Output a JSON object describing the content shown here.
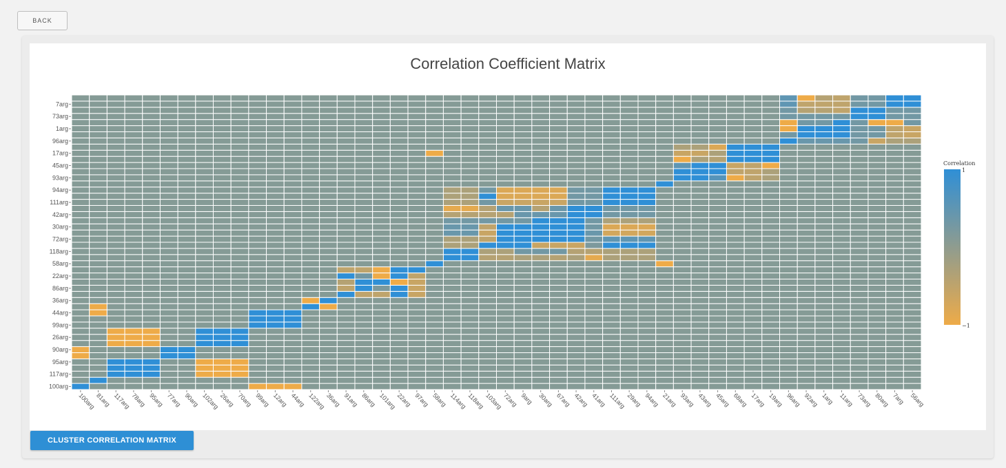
{
  "toolbar": {
    "back_label": "BACK"
  },
  "actions": {
    "cluster_label": "CLUSTER CORRELATION MATRIX"
  },
  "chart_data": {
    "type": "heatmap",
    "title": "Correlation Coefficient Matrix",
    "x_labels": [
      "100arg",
      "81arg",
      "117arg",
      "78arg",
      "95arg",
      "77arg",
      "90arg",
      "102arg",
      "26arg",
      "70arg",
      "99arg",
      "12arg",
      "44arg",
      "122arg",
      "36arg",
      "91arg",
      "86arg",
      "101arg",
      "22arg",
      "97arg",
      "58arg",
      "114arg",
      "118arg",
      "103arg",
      "72arg",
      "9arg",
      "30arg",
      "67arg",
      "42arg",
      "41arg",
      "111arg",
      "29arg",
      "94arg",
      "21arg",
      "93arg",
      "43arg",
      "45arg",
      "68arg",
      "17arg",
      "19arg",
      "96arg",
      "92arg",
      "1arg",
      "11arg",
      "73arg",
      "80arg",
      "7arg",
      "56arg"
    ],
    "y_tick_labels": [
      "7arg",
      "73arg",
      "1arg",
      "96arg",
      "17arg",
      "45arg",
      "93arg",
      "94arg",
      "111arg",
      "42arg",
      "30arg",
      "72arg",
      "118arg",
      "58arg",
      "22arg",
      "86arg",
      "36arg",
      "44arg",
      "99arg",
      "26arg",
      "90arg",
      "95arg",
      "117arg",
      "100arg"
    ],
    "row_count": 48,
    "value_range": [
      -1,
      1
    ],
    "default_value": 0.1,
    "blocks": [
      {
        "rows": [
          0,
          1
        ],
        "cols": [
          0,
          1
        ],
        "values": [
          [
            1,
            0.1
          ],
          [
            0.1,
            1
          ]
        ]
      },
      {
        "rows": [
          2,
          3,
          4
        ],
        "cols": [
          2,
          3,
          4
        ],
        "values": [
          [
            1,
            1,
            1
          ],
          [
            1,
            1,
            1
          ],
          [
            1,
            1,
            1
          ]
        ]
      },
      {
        "rows": [
          5,
          6
        ],
        "cols": [
          5,
          6
        ],
        "values": [
          [
            1,
            1
          ],
          [
            1,
            1
          ]
        ]
      },
      {
        "rows": [
          7,
          8,
          9
        ],
        "cols": [
          7,
          8,
          9
        ],
        "values": [
          [
            1,
            1,
            1
          ],
          [
            1,
            1,
            1
          ],
          [
            1,
            1,
            1
          ]
        ]
      },
      {
        "rows": [
          10,
          11,
          12
        ],
        "cols": [
          10,
          11,
          12
        ],
        "values": [
          [
            1,
            1,
            1
          ],
          [
            1,
            1,
            1
          ],
          [
            1,
            1,
            1
          ]
        ]
      },
      {
        "rows": [
          13,
          14
        ],
        "cols": [
          13,
          14
        ],
        "values": [
          [
            1,
            -1
          ],
          [
            -1,
            1
          ]
        ]
      },
      {
        "rows": [
          0
        ],
        "cols": [
          10,
          11,
          12
        ],
        "values": [
          [
            -1,
            -1,
            -1
          ]
        ]
      },
      {
        "rows": [
          2,
          3,
          4
        ],
        "cols": [
          7,
          8,
          9
        ],
        "values": [
          [
            -1,
            -1,
            -1
          ],
          [
            -1,
            -1,
            -1
          ],
          [
            -1,
            -1,
            -1
          ]
        ]
      },
      {
        "rows": [
          5,
          6
        ],
        "cols": [
          0
        ],
        "values": [
          [
            -1
          ],
          [
            -1
          ]
        ]
      },
      {
        "rows": [
          7,
          8,
          9
        ],
        "cols": [
          2,
          3,
          4
        ],
        "values": [
          [
            -1,
            -1,
            -1
          ],
          [
            -1,
            -1,
            -1
          ],
          [
            -1,
            -1,
            -1
          ]
        ]
      },
      {
        "rows": [
          12,
          13
        ],
        "cols": [
          1
        ],
        "values": [
          [
            -1
          ],
          [
            -1
          ]
        ]
      },
      {
        "rows": [
          15,
          16,
          17,
          18,
          19
        ],
        "cols": [
          15,
          16,
          17,
          18,
          19
        ],
        "values": [
          [
            1,
            -0.5,
            -0.5,
            1,
            -0.6
          ],
          [
            -0.5,
            1,
            0.2,
            1,
            -0.6
          ],
          [
            -0.4,
            1,
            1,
            -1,
            -0.6
          ],
          [
            1,
            0.3,
            -1,
            1,
            -0.5
          ],
          [
            -0.5,
            -0.5,
            -1,
            1,
            1
          ]
        ]
      },
      {
        "rows": [
          20
        ],
        "cols": [
          20
        ],
        "values": [
          [
            1
          ]
        ]
      },
      {
        "rows": [
          21,
          22,
          23,
          24,
          25,
          26,
          27,
          28,
          29,
          30,
          31,
          32
        ],
        "cols": [
          21,
          22,
          23,
          24,
          25,
          26,
          27,
          28,
          29,
          30,
          31,
          32
        ],
        "values": [
          [
            1,
            1,
            -0.4,
            -0.4,
            -0.3,
            -0.3,
            -0.4,
            -0.3,
            -0.9,
            -0.3,
            -0.3,
            -0.3
          ],
          [
            1,
            1,
            -0.3,
            -0.3,
            0.3,
            0.3,
            0.3,
            -0.4,
            -0.4,
            -0.3,
            -0.3,
            -0.3
          ],
          [
            -0.3,
            -0.3,
            1,
            1,
            1,
            -0.6,
            -0.6,
            -0.6,
            0.2,
            1,
            1,
            1
          ],
          [
            -0.3,
            -0.3,
            -0.5,
            1,
            1,
            1,
            1,
            1,
            0.3,
            0.5,
            0.5,
            0.5
          ],
          [
            0.4,
            0.4,
            -0.6,
            1,
            1,
            1,
            1,
            1,
            0.4,
            -0.7,
            -0.7,
            -0.7
          ],
          [
            0.4,
            0.4,
            -0.5,
            1,
            1,
            1,
            1,
            1,
            0.3,
            -0.8,
            -0.8,
            -0.8
          ],
          [
            0.3,
            0.3,
            0.3,
            0.3,
            0.3,
            1,
            1,
            1,
            0.3,
            -0.3,
            -0.3,
            -0.3
          ],
          [
            -0.4,
            -0.4,
            -0.4,
            -0.4,
            0.4,
            0.4,
            0.4,
            1,
            1,
            0.3,
            0.3,
            0.3
          ],
          [
            -0.9,
            -0.9,
            -0.4,
            0.4,
            0.4,
            -0.4,
            0.4,
            1,
            1,
            0.3,
            0.3,
            0.3
          ],
          [
            -0.3,
            -0.3,
            0.3,
            -0.6,
            -0.6,
            -0.6,
            -0.6,
            0.3,
            0.3,
            1,
            1,
            1
          ],
          [
            -0.3,
            -0.3,
            1,
            -0.8,
            -0.8,
            -0.8,
            -0.8,
            0.3,
            0.3,
            1,
            1,
            1
          ],
          [
            -0.3,
            -0.3,
            0.3,
            -0.8,
            -0.8,
            -0.8,
            -0.8,
            0.3,
            0.3,
            1,
            1,
            1
          ]
        ]
      },
      {
        "rows": [
          33
        ],
        "cols": [
          33
        ],
        "values": [
          [
            1
          ]
        ]
      },
      {
        "rows": [
          34,
          35,
          36,
          37,
          38,
          39
        ],
        "cols": [
          34,
          35,
          36,
          37,
          38,
          39
        ],
        "values": [
          [
            1,
            1,
            0.6,
            -1,
            -0.5,
            -0.3
          ],
          [
            1,
            1,
            1,
            -0.5,
            -0.5,
            -0.3
          ],
          [
            0.5,
            1,
            1,
            -0.6,
            -0.5,
            -1
          ],
          [
            -1,
            -0.3,
            -0.4,
            1,
            1,
            1
          ],
          [
            -0.6,
            -0.6,
            -0.3,
            1,
            1,
            1
          ],
          [
            -0.3,
            -0.3,
            -0.8,
            1,
            1,
            1
          ]
        ]
      },
      {
        "rows": [
          40,
          41,
          42,
          43,
          44,
          45,
          46,
          47
        ],
        "cols": [
          40,
          41,
          42,
          43,
          44,
          45,
          46,
          47
        ],
        "values": [
          [
            1,
            0.4,
            0.4,
            0.4,
            0.3,
            -0.6,
            -0.3,
            -0.3
          ],
          [
            0.3,
            1,
            1,
            1,
            0.3,
            0.3,
            -0.5,
            -0.6
          ],
          [
            -1,
            1,
            1,
            1,
            0.3,
            0.3,
            -0.5,
            -0.6
          ],
          [
            -1,
            0.3,
            0.3,
            1,
            0.3,
            -1,
            -1,
            0.3
          ],
          [
            0.3,
            0.3,
            0.3,
            0.3,
            1,
            1,
            0.3,
            0.3
          ],
          [
            0.3,
            -0.4,
            -0.4,
            -0.5,
            1,
            1,
            0.3,
            0.3
          ],
          [
            0.5,
            -0.5,
            -0.5,
            -0.5,
            0.3,
            0.3,
            1,
            1
          ],
          [
            0.5,
            -1,
            -0.4,
            -0.5,
            0.3,
            0.3,
            1,
            1
          ]
        ]
      },
      {
        "rows": [
          38
        ],
        "cols": [
          20
        ],
        "values": [
          [
            -1
          ]
        ]
      },
      {
        "rows": [
          20
        ],
        "cols": [
          33
        ],
        "values": [
          [
            -1
          ]
        ]
      }
    ],
    "legend": {
      "title": "Correlation",
      "max_label": "1",
      "min_label": "−1"
    },
    "colors": {
      "positive": "#2f8fd6",
      "neutral": "#8f9c8f",
      "negative": "#eeab48",
      "cell_stroke": "#ffffff"
    },
    "grid": true
  }
}
